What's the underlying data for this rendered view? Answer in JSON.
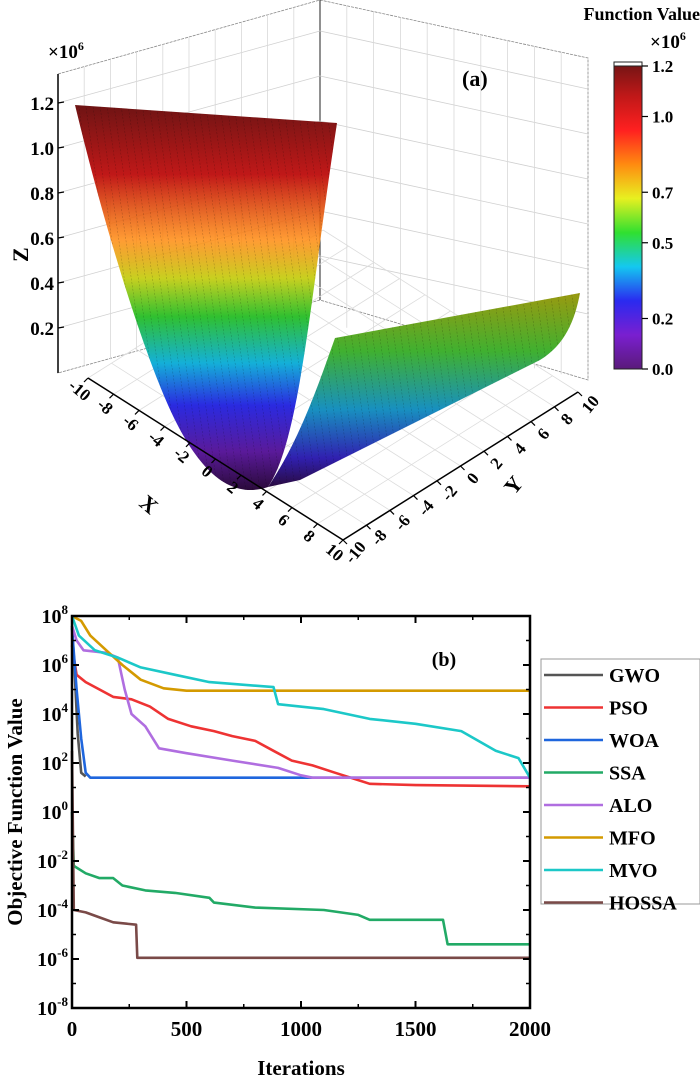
{
  "chart_data": [
    {
      "type": "surface3d",
      "panel_label": "(a)",
      "title": "",
      "xlabel": "X",
      "ylabel": "Y",
      "zlabel": "Z",
      "z_multiplier": "×10",
      "z_multiplier_exp": "6",
      "x_ticks": [
        "-10",
        "-8",
        "-6",
        "-4",
        "-2",
        "0",
        "2",
        "4",
        "6",
        "8",
        "10"
      ],
      "y_ticks": [
        "-10",
        "-8",
        "-6",
        "-4",
        "-2",
        "0",
        "2",
        "4",
        "6",
        "8",
        "10"
      ],
      "z_ticks": [
        "0.2",
        "0.4",
        "0.6",
        "0.8",
        "1.0",
        "1.2"
      ],
      "xlim": [
        -10,
        10
      ],
      "ylim": [
        -10,
        10
      ],
      "zlim": [
        0,
        1200000
      ],
      "surface_description": "U-shaped valley surface; minimum near X≈4, rising steeply toward X=-10 (≈1.2e6) and moderately toward X=10",
      "colorbar": {
        "title": "Function Value",
        "multiplier": "×10",
        "multiplier_exp": "6",
        "ticks": [
          "0.0",
          "0.2",
          "0.5",
          "0.7",
          "1.0",
          "1.2"
        ],
        "range": [
          0,
          1.2
        ],
        "colormap": [
          "#5a1a7a",
          "#7a1fd0",
          "#2a2af0",
          "#14c8f0",
          "#30e030",
          "#e8f020",
          "#ff8a10",
          "#ff2020",
          "#c01818",
          "#6e1414"
        ]
      },
      "grid": true
    },
    {
      "type": "line",
      "panel_label": "(b)",
      "title": "",
      "xlabel": "Iterations",
      "ylabel": "Objective Function Value",
      "yscale": "log",
      "xlim": [
        0,
        2000
      ],
      "ylim_exp": [
        -8,
        8
      ],
      "x_ticks": [
        "0",
        "500",
        "1000",
        "1500",
        "2000"
      ],
      "y_ticks": [
        {
          "base": "10",
          "exp": "8"
        },
        {
          "base": "10",
          "exp": "6"
        },
        {
          "base": "10",
          "exp": "4"
        },
        {
          "base": "10",
          "exp": "2"
        },
        {
          "base": "10",
          "exp": "0"
        },
        {
          "base": "10",
          "exp": "-2"
        },
        {
          "base": "10",
          "exp": "-4"
        },
        {
          "base": "10",
          "exp": "-6"
        },
        {
          "base": "10",
          "exp": "-8"
        }
      ],
      "legend_position": "outside-right",
      "series": [
        {
          "name": "GWO",
          "color": "#555555",
          "points_log10": [
            [
              0,
              7.6
            ],
            [
              10,
              6.0
            ],
            [
              25,
              3.2
            ],
            [
              40,
              1.6
            ],
            [
              60,
              1.45
            ]
          ]
        },
        {
          "name": "PSO",
          "color": "#ee3333",
          "points_log10": [
            [
              0,
              6.8
            ],
            [
              20,
              5.6
            ],
            [
              60,
              5.3
            ],
            [
              120,
              5.0
            ],
            [
              180,
              4.7
            ],
            [
              260,
              4.6
            ],
            [
              340,
              4.3
            ],
            [
              420,
              3.8
            ],
            [
              520,
              3.5
            ],
            [
              620,
              3.3
            ],
            [
              700,
              3.1
            ],
            [
              800,
              2.9
            ],
            [
              880,
              2.5
            ],
            [
              960,
              2.1
            ],
            [
              1050,
              1.9
            ],
            [
              1150,
              1.6
            ],
            [
              1250,
              1.3
            ],
            [
              1300,
              1.15
            ],
            [
              1500,
              1.1
            ],
            [
              2000,
              1.05
            ]
          ]
        },
        {
          "name": "WOA",
          "color": "#1f66dd",
          "points_log10": [
            [
              0,
              7.5
            ],
            [
              20,
              5.0
            ],
            [
              40,
              3.0
            ],
            [
              60,
              1.6
            ],
            [
              80,
              1.4
            ],
            [
              500,
              1.4
            ],
            [
              1000,
              1.4
            ],
            [
              2000,
              1.4
            ]
          ]
        },
        {
          "name": "SSA",
          "color": "#22aa66",
          "points_log10": [
            [
              0,
              0.0
            ],
            [
              8,
              -2.2
            ],
            [
              60,
              -2.5
            ],
            [
              120,
              -2.7
            ],
            [
              180,
              -2.7
            ],
            [
              220,
              -3.0
            ],
            [
              320,
              -3.2
            ],
            [
              450,
              -3.3
            ],
            [
              600,
              -3.5
            ],
            [
              620,
              -3.7
            ],
            [
              800,
              -3.9
            ],
            [
              1100,
              -4.0
            ],
            [
              1250,
              -4.2
            ],
            [
              1300,
              -4.4
            ],
            [
              1620,
              -4.4
            ],
            [
              1640,
              -5.4
            ],
            [
              2000,
              -5.4
            ]
          ]
        },
        {
          "name": "ALO",
          "color": "#b06ee0",
          "points_log10": [
            [
              0,
              7.6
            ],
            [
              20,
              7.0
            ],
            [
              50,
              6.6
            ],
            [
              150,
              6.5
            ],
            [
              200,
              6.3
            ],
            [
              230,
              5.0
            ],
            [
              260,
              4.0
            ],
            [
              320,
              3.5
            ],
            [
              380,
              2.6
            ],
            [
              500,
              2.4
            ],
            [
              700,
              2.1
            ],
            [
              900,
              1.8
            ],
            [
              1000,
              1.5
            ],
            [
              1050,
              1.4
            ],
            [
              2000,
              1.4
            ]
          ]
        },
        {
          "name": "MFO",
          "color": "#d49a00",
          "points_log10": [
            [
              0,
              8.0
            ],
            [
              40,
              7.8
            ],
            [
              80,
              7.2
            ],
            [
              150,
              6.6
            ],
            [
              220,
              6.0
            ],
            [
              300,
              5.4
            ],
            [
              400,
              5.05
            ],
            [
              500,
              4.95
            ],
            [
              2000,
              4.95
            ]
          ]
        },
        {
          "name": "MVO",
          "color": "#1cc8c8",
          "points_log10": [
            [
              0,
              8.0
            ],
            [
              30,
              7.2
            ],
            [
              100,
              6.6
            ],
            [
              200,
              6.3
            ],
            [
              300,
              5.9
            ],
            [
              450,
              5.6
            ],
            [
              600,
              5.3
            ],
            [
              880,
              5.1
            ],
            [
              900,
              4.4
            ],
            [
              1100,
              4.2
            ],
            [
              1300,
              3.8
            ],
            [
              1500,
              3.6
            ],
            [
              1700,
              3.3
            ],
            [
              1850,
              2.5
            ],
            [
              1950,
              2.2
            ],
            [
              2000,
              1.4
            ]
          ]
        },
        {
          "name": "HOSSA",
          "color": "#7a4a48",
          "points_log10": [
            [
              0,
              2.5
            ],
            [
              8,
              -4.0
            ],
            [
              60,
              -4.1
            ],
            [
              120,
              -4.3
            ],
            [
              180,
              -4.5
            ],
            [
              280,
              -4.6
            ],
            [
              285,
              -5.95
            ],
            [
              2000,
              -5.95
            ]
          ]
        }
      ]
    }
  ]
}
